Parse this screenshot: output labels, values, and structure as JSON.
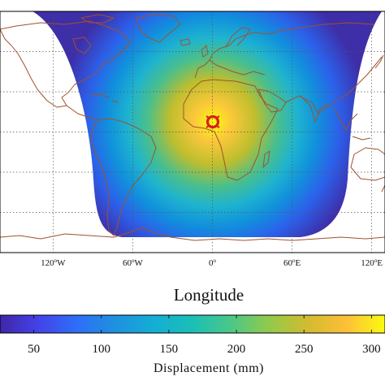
{
  "chart_data": {
    "type": "heatmap",
    "title": "",
    "xlabel": "Longitude",
    "colorbar": {
      "label": "Displacement  (mm)",
      "ticks": [
        "50",
        "100",
        "150",
        "200",
        "250",
        "300"
      ],
      "tick_values": [
        50,
        100,
        150,
        200,
        250,
        300
      ],
      "range": [
        25,
        310
      ],
      "colormap": "parula"
    },
    "x_ticks": [
      {
        "lon": -120,
        "deg": "120",
        "hem": "W"
      },
      {
        "lon": -60,
        "deg": "60",
        "hem": "W"
      },
      {
        "lon": 0,
        "deg": "0",
        "hem": ""
      },
      {
        "lon": 60,
        "deg": "60",
        "hem": "E"
      },
      {
        "lon": 120,
        "deg": "120",
        "hem": "E"
      }
    ],
    "xlim": [
      -160,
      130
    ],
    "ylim": [
      -90,
      90
    ],
    "grid": true,
    "source_marker": {
      "lon": 3,
      "lat": 10,
      "color": "#d9201d"
    },
    "field": {
      "peak_value": 305,
      "edge_value": 28,
      "visible_radius_deg": 90
    },
    "coastline_color": "#a0522d"
  }
}
